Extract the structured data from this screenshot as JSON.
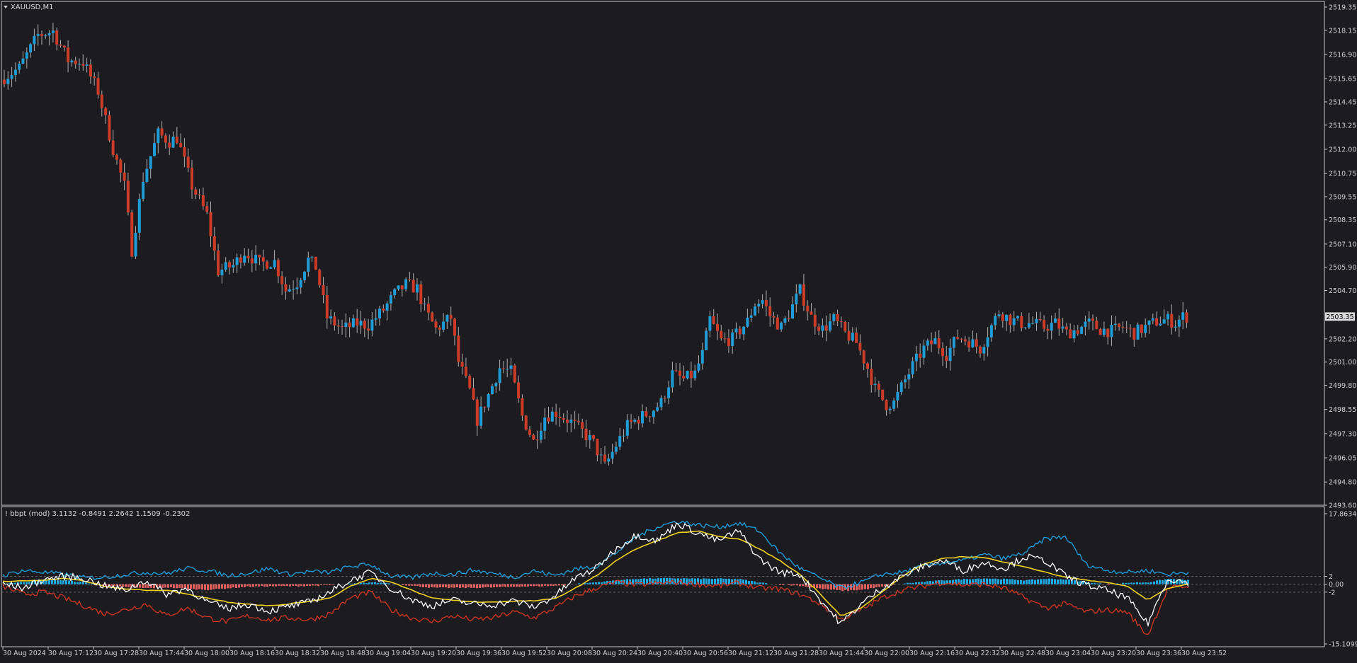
{
  "window": {
    "symbol_label": "XAUUSD,M1",
    "dropdown_icon": "triangle-down-icon",
    "current_price": "2503.35"
  },
  "colors": {
    "background": "#1c1c20",
    "frame": "#c8c8c8",
    "bull": "#1f9bd6",
    "bear": "#cc3a28",
    "indicator_white": "#ffffff",
    "indicator_blue": "#1fa0e0",
    "indicator_red": "#d03520",
    "indicator_yellow": "#f0d020",
    "histogram_pos": "#22a8e0",
    "histogram_neg": "#e06060",
    "grid": "#2a2a30",
    "text": "#d0d0d0"
  },
  "chart_data": [
    {
      "type": "candlestick",
      "title": "XAUUSD,M1",
      "grid": false,
      "ylim": [
        2493.6,
        2519.35
      ],
      "y_ticks": [
        "2519.35",
        "2518.15",
        "2516.90",
        "2515.65",
        "2514.45",
        "2513.25",
        "2512.00",
        "2510.75",
        "2509.55",
        "2508.35",
        "2507.10",
        "2505.90",
        "2504.70",
        "2503.35",
        "2502.20",
        "2501.00",
        "2499.80",
        "2498.55",
        "2497.30",
        "2496.05",
        "2494.80",
        "2493.60"
      ],
      "x_ticks": [
        "30 Aug 2024",
        "30 Aug 17:12",
        "30 Aug 17:28",
        "30 Aug 17:44",
        "30 Aug 18:00",
        "30 Aug 18:16",
        "30 Aug 18:32",
        "30 Aug 18:48",
        "30 Aug 19:04",
        "30 Aug 19:20",
        "30 Aug 19:36",
        "30 Aug 19:52",
        "30 Aug 20:08",
        "30 Aug 20:24",
        "30 Aug 20:40",
        "30 Aug 20:56",
        "30 Aug 21:12",
        "30 Aug 21:28",
        "30 Aug 21:44",
        "30 Aug 22:00",
        "30 Aug 22:16",
        "30 Aug 22:32",
        "30 Aug 22:48",
        "30 Aug 23:04",
        "30 Aug 23:20",
        "30 Aug 23:36",
        "30 Aug 23:52"
      ],
      "close_path": [
        [
          0,
          2515.6
        ],
        [
          5,
          2516.2
        ],
        [
          10,
          2517.9
        ],
        [
          14,
          2518.1
        ],
        [
          18,
          2516.6
        ],
        [
          22,
          2516.5
        ],
        [
          26,
          2515.0
        ],
        [
          30,
          2512.0
        ],
        [
          33,
          2510.1
        ],
        [
          35,
          2506.8
        ],
        [
          38,
          2510.5
        ],
        [
          42,
          2512.8
        ],
        [
          45,
          2512.4
        ],
        [
          47,
          2512.6
        ],
        [
          51,
          2510.1
        ],
        [
          55,
          2508.6
        ],
        [
          58,
          2505.7
        ],
        [
          62,
          2506.0
        ],
        [
          65,
          2506.7
        ],
        [
          69,
          2506.1
        ],
        [
          73,
          2506.2
        ],
        [
          76,
          2504.7
        ],
        [
          79,
          2505.1
        ],
        [
          82,
          2506.3
        ],
        [
          84,
          2505.9
        ],
        [
          87,
          2503.3
        ],
        [
          91,
          2502.7
        ],
        [
          95,
          2503.0
        ],
        [
          98,
          2502.9
        ],
        [
          102,
          2503.7
        ],
        [
          105,
          2504.5
        ],
        [
          108,
          2505.0
        ],
        [
          111,
          2504.8
        ],
        [
          113,
          2503.7
        ],
        [
          116,
          2502.7
        ],
        [
          120,
          2503.3
        ],
        [
          122,
          2501.0
        ],
        [
          125,
          2499.5
        ],
        [
          127,
          2498.0
        ],
        [
          130,
          2499.3
        ],
        [
          133,
          2500.7
        ],
        [
          136,
          2500.5
        ],
        [
          139,
          2498.2
        ],
        [
          142,
          2496.9
        ],
        [
          145,
          2498.2
        ],
        [
          148,
          2498.4
        ],
        [
          152,
          2497.9
        ],
        [
          155,
          2497.4
        ],
        [
          158,
          2496.8
        ],
        [
          161,
          2495.6
        ],
        [
          164,
          2496.7
        ],
        [
          167,
          2497.7
        ],
        [
          170,
          2498.1
        ],
        [
          173,
          2498.4
        ],
        [
          176,
          2498.9
        ],
        [
          179,
          2500.4
        ],
        [
          182,
          2500.1
        ],
        [
          185,
          2500.4
        ],
        [
          187,
          2501.4
        ],
        [
          189,
          2503.2
        ],
        [
          192,
          2502.1
        ],
        [
          195,
          2502.2
        ],
        [
          199,
          2503.1
        ],
        [
          201,
          2504.0
        ],
        [
          203,
          2504.2
        ],
        [
          205,
          2503.4
        ],
        [
          208,
          2502.8
        ],
        [
          210,
          2503.5
        ],
        [
          213,
          2504.7
        ],
        [
          216,
          2503.3
        ],
        [
          219,
          2502.7
        ],
        [
          222,
          2503.2
        ],
        [
          225,
          2502.5
        ],
        [
          228,
          2502.0
        ],
        [
          231,
          2500.7
        ],
        [
          233,
          2499.6
        ],
        [
          236,
          2498.8
        ],
        [
          238,
          2498.9
        ],
        [
          240,
          2499.7
        ],
        [
          243,
          2500.8
        ],
        [
          246,
          2501.7
        ],
        [
          249,
          2502.1
        ],
        [
          252,
          2501.4
        ],
        [
          255,
          2502.3
        ],
        [
          258,
          2502.1
        ],
        [
          261,
          2501.7
        ],
        [
          263,
          2502.5
        ],
        [
          266,
          2503.6
        ],
        [
          269,
          2503.2
        ],
        [
          272,
          2503.0
        ],
        [
          275,
          2503.0
        ],
        [
          278,
          2502.8
        ],
        [
          281,
          2503.0
        ],
        [
          284,
          2502.5
        ],
        [
          287,
          2502.7
        ],
        [
          290,
          2503.0
        ],
        [
          293,
          2502.7
        ],
        [
          296,
          2502.6
        ],
        [
          299,
          2502.8
        ],
        [
          302,
          2502.5
        ],
        [
          305,
          2502.8
        ],
        [
          308,
          2503.1
        ],
        [
          311,
          2503.2
        ],
        [
          313,
          2503.0
        ],
        [
          315,
          2503.35
        ]
      ],
      "x_span_minutes": 316,
      "last_price": 2503.35
    },
    {
      "type": "line",
      "title": "! bbpt (mod) 3.1132 -0.8491 2.2642 1.1509 -0.2302",
      "ylim": [
        -15.1099,
        17.8634
      ],
      "y_ticks": [
        "17.8634",
        "2",
        "0.00",
        "-2",
        "-15.1099"
      ],
      "levels": [
        2,
        0,
        -2
      ],
      "series": [
        {
          "color": "#ffffff",
          "values": [
            0.2,
            -1.0,
            1.2,
            2.0,
            1.5,
            -0.5,
            -1.5,
            1.0,
            -2.5,
            -1.0,
            -4.5,
            -6.2,
            -5.0,
            -6.8,
            -5.6,
            -4.5,
            -2.0,
            1.0,
            3.0,
            -1.0,
            -4.0,
            -5.5,
            -4.0,
            -5.0,
            -5.2,
            -4.2,
            -5.8,
            -3.0,
            1.5,
            4.0,
            9.0,
            12.5,
            11.0,
            15.5,
            13.0,
            11.0,
            13.5,
            6.5,
            3.0,
            2.5,
            -4.0,
            -10.0,
            -5.0,
            -1.0,
            2.0,
            4.5,
            6.0,
            3.5,
            5.5,
            4.0,
            7.0,
            6.0,
            2.0,
            -0.2,
            -1.5,
            -3.5,
            -10.0,
            1.5,
            0.3
          ]
        },
        {
          "color": "#1fa0e0",
          "values": [
            2.2,
            3.5,
            3.0,
            2.5,
            1.6,
            1.8,
            2.5,
            3.0,
            2.7,
            4.0,
            3.5,
            2.2,
            2.8,
            4.0,
            2.5,
            3.2,
            3.0,
            4.5,
            5.0,
            2.0,
            1.6,
            2.8,
            2.5,
            3.6,
            2.7,
            1.8,
            3.4,
            2.2,
            3.8,
            4.5,
            8.0,
            12.0,
            14.5,
            16.0,
            15.0,
            14.5,
            15.5,
            13.5,
            8.0,
            4.0,
            1.5,
            -1.0,
            0.5,
            2.5,
            3.0,
            4.5,
            5.5,
            6.0,
            7.5,
            6.5,
            8.0,
            11.5,
            12.0,
            5.0,
            3.5,
            3.0,
            3.5,
            2.5,
            3.0
          ]
        },
        {
          "color": "#d03520",
          "values": [
            -0.5,
            -2.5,
            -2.0,
            -3.5,
            -5.5,
            -7.5,
            -6.5,
            -5.0,
            -8.0,
            -6.0,
            -8.5,
            -9.5,
            -8.0,
            -9.0,
            -8.5,
            -9.0,
            -7.5,
            -3.5,
            -2.0,
            -6.5,
            -8.5,
            -9.5,
            -8.0,
            -9.0,
            -8.5,
            -7.0,
            -8.5,
            -6.0,
            -3.0,
            -1.0,
            0.5,
            -0.2,
            0.2,
            0.5,
            0.0,
            -0.5,
            0.3,
            -1.0,
            -1.2,
            -2.5,
            -5.0,
            -9.0,
            -6.5,
            -3.5,
            -1.5,
            -0.5,
            0.5,
            -0.2,
            0.0,
            -1.0,
            -3.5,
            -6.0,
            -5.0,
            -7.0,
            -6.5,
            -7.0,
            -13.0,
            -1.0,
            -0.5
          ]
        },
        {
          "color": "#f0d020",
          "values": [
            0.8,
            0.8,
            1.0,
            1.5,
            0.8,
            -0.5,
            -1.2,
            -1.5,
            -1.5,
            -2.5,
            -3.5,
            -4.5,
            -5.0,
            -5.5,
            -5.0,
            -4.3,
            -3.5,
            -0.5,
            1.5,
            0.5,
            -1.5,
            -3.5,
            -4.0,
            -4.5,
            -4.5,
            -4.3,
            -4.2,
            -3.7,
            -1.0,
            2.0,
            6.0,
            9.0,
            11.0,
            13.0,
            13.5,
            12.0,
            11.5,
            9.0,
            6.0,
            2.5,
            -2.5,
            -8.0,
            -6.0,
            -2.0,
            2.0,
            5.0,
            6.5,
            7.0,
            6.8,
            5.5,
            4.5,
            3.0,
            1.8,
            1.0,
            0.5,
            -0.5,
            -4.0,
            -1.0,
            0.0
          ]
        }
      ],
      "histogram": [
        0.2,
        0.6,
        1.2,
        1.0,
        0.4,
        -0.3,
        -0.8,
        -1.0,
        -0.8,
        -1.2,
        -1.4,
        -1.0,
        -0.6,
        -0.5,
        -0.5,
        -0.4,
        -0.2,
        0.1,
        0.5,
        0.2,
        -0.4,
        -0.9,
        -0.9,
        -0.9,
        -0.8,
        -0.6,
        -0.5,
        -0.4,
        0.1,
        0.5,
        1.0,
        1.4,
        1.5,
        1.5,
        1.4,
        1.4,
        1.3,
        0.4,
        -0.1,
        -0.4,
        -1.2,
        -1.6,
        -1.4,
        -0.6,
        0.2,
        0.6,
        1.0,
        1.3,
        1.5,
        1.3,
        1.0,
        1.4,
        1.2,
        0.5,
        -0.1,
        0.4,
        0.5,
        1.4,
        1.0
      ]
    }
  ]
}
